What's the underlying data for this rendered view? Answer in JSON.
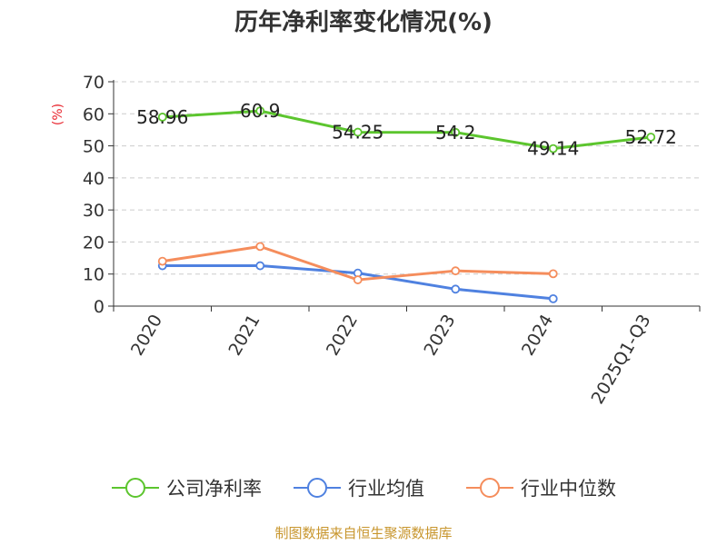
{
  "chart_data": {
    "type": "line",
    "title": "历年净利率变化情况(%)",
    "ylabel": "(%)",
    "ylim": [
      0,
      70
    ],
    "yticks": [
      0,
      10,
      20,
      30,
      40,
      50,
      60,
      70
    ],
    "grid": true,
    "legend_position": "bottom",
    "categories": [
      "2020",
      "2021",
      "2022",
      "2023",
      "2024",
      "2025Q1-Q3"
    ],
    "series": [
      {
        "name": "公司净利率",
        "color": "#5cc52e",
        "values": [
          58.96,
          60.9,
          54.25,
          54.2,
          49.14,
          52.72
        ],
        "labels": [
          "58.96",
          "60.9",
          "54.25",
          "54.2",
          "49.14",
          "52.72"
        ]
      },
      {
        "name": "行业均值",
        "color": "#4f81e0",
        "values": [
          12.6,
          12.6,
          10.3,
          5.3,
          2.3,
          null
        ]
      },
      {
        "name": "行业中位数",
        "color": "#f58d5c",
        "values": [
          14.0,
          18.6,
          8.2,
          11.0,
          10.1,
          null
        ]
      }
    ]
  },
  "source": "制图数据来自恒生聚源数据库"
}
